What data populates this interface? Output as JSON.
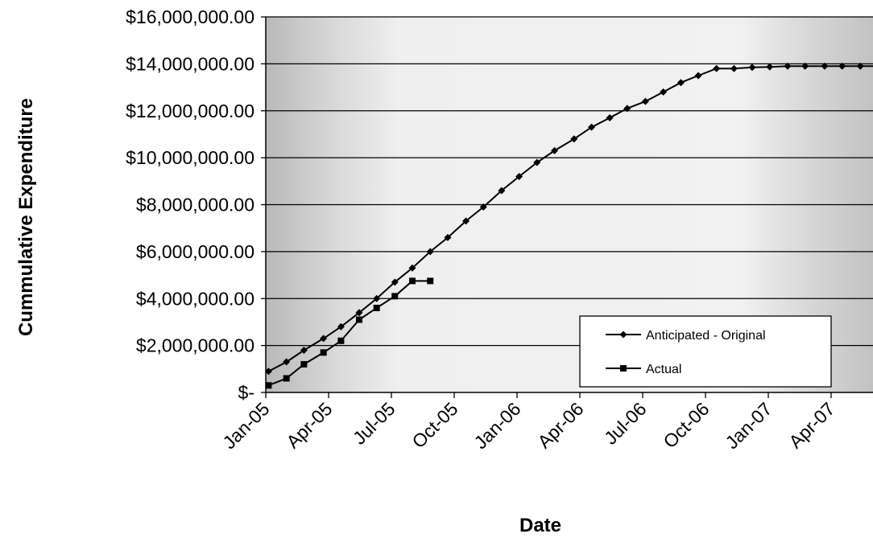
{
  "chart_data": {
    "type": "line",
    "title": "",
    "xlabel": "Date",
    "ylabel": "Cummulative Expenditure",
    "ylim": [
      0,
      16000000
    ],
    "xlim": [
      "2005-01",
      "2007-06"
    ],
    "grid": "horizontal",
    "legend_position": "bottom-right",
    "y_tick_labels": [
      "$-",
      "$2,000,000.00",
      "$4,000,000.00",
      "$6,000,000.00",
      "$8,000,000.00",
      "$10,000,000.00",
      "$12,000,000.00",
      "$14,000,000.00",
      "$16,000,000.00"
    ],
    "x_tick_labels": [
      "Jan-05",
      "Apr-05",
      "Jul-05",
      "Oct-05",
      "Jan-06",
      "Apr-06",
      "Jul-06",
      "Oct-06",
      "Jan-07",
      "Apr-07"
    ],
    "series": [
      {
        "name": "Anticipated - Original",
        "marker": "diamond",
        "color": "#000000",
        "x": [
          "2005-01-05",
          "2005-01-31",
          "2005-02-26",
          "2005-03-24",
          "2005-04-19",
          "2005-05-15",
          "2005-06-10",
          "2005-07-06",
          "2005-08-01",
          "2005-08-27",
          "2005-09-22",
          "2005-10-18",
          "2005-11-13",
          "2005-12-09",
          "2006-01-04",
          "2006-01-30",
          "2006-02-25",
          "2006-03-23",
          "2006-04-18",
          "2006-05-14",
          "2006-06-09",
          "2006-07-05",
          "2006-07-31",
          "2006-08-26",
          "2006-09-21",
          "2006-10-17",
          "2006-11-12",
          "2006-12-08",
          "2007-01-03",
          "2007-01-29",
          "2007-02-24",
          "2007-03-22",
          "2007-04-17",
          "2007-05-13",
          "2007-06-08"
        ],
        "values": [
          900000,
          1300000,
          1800000,
          2300000,
          2800000,
          3400000,
          4000000,
          4700000,
          5300000,
          6000000,
          6600000,
          7300000,
          7900000,
          8600000,
          9200000,
          9800000,
          10300000,
          10800000,
          11300000,
          11700000,
          12100000,
          12400000,
          12800000,
          13200000,
          13500000,
          13800000,
          13800000,
          13850000,
          13870000,
          13900000,
          13900000,
          13900000,
          13900000,
          13900000,
          13900000
        ]
      },
      {
        "name": "Actual",
        "marker": "square",
        "color": "#000000",
        "x": [
          "2005-01-05",
          "2005-01-31",
          "2005-02-26",
          "2005-03-24",
          "2005-04-19",
          "2005-05-15",
          "2005-06-10",
          "2005-07-06",
          "2005-08-01",
          "2005-08-27"
        ],
        "values": [
          300000,
          600000,
          1200000,
          1700000,
          2200000,
          3100000,
          3600000,
          4100000,
          4750000,
          4750000
        ]
      }
    ]
  }
}
